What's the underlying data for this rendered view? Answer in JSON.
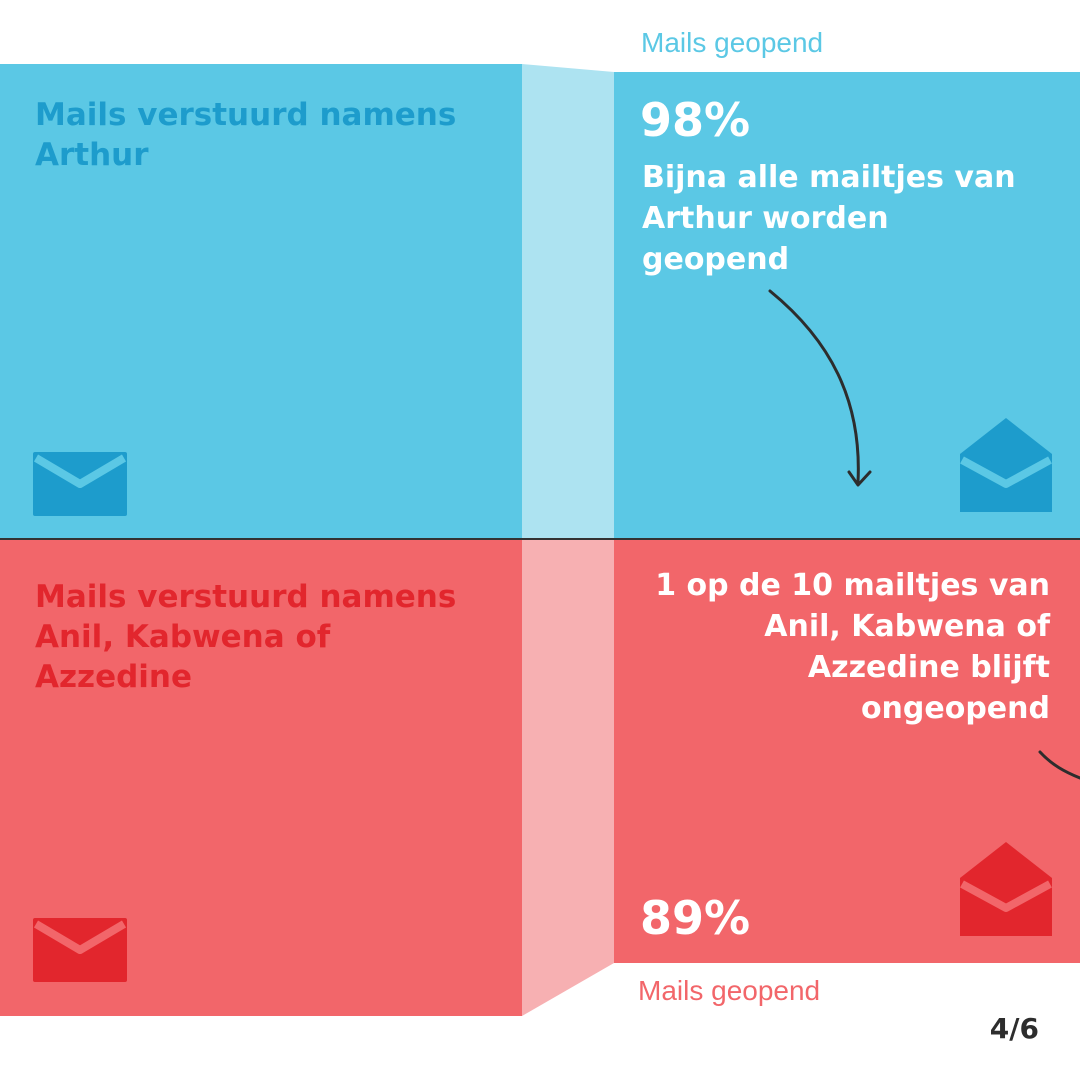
{
  "chart_data": {
    "type": "bar",
    "categories": [
      "Mails verstuurd namens Arthur",
      "Mails verstuurd namens Anil, Kabwena of Azzedine"
    ],
    "series": [
      {
        "name": "Mails geopend",
        "values": [
          98,
          89
        ]
      }
    ],
    "unit": "%",
    "ylim": [
      0,
      100
    ]
  },
  "blue": {
    "title": "Mails verstuurd namens Arthur",
    "percent": "98%",
    "note": "Bijna alle mailtjes van Arthur worden geopend",
    "label": "Mails geopend"
  },
  "red": {
    "title": "Mails verstuurd namens Anil, Kabwena of Azzedine",
    "percent": "89%",
    "note": "1 op de 10 mailtjes van Anil, Kabwena of Azzedine blijft ongeopend",
    "label": "Mails geopend"
  },
  "page": "4/6",
  "colors": {
    "blue": "#5bc8e5",
    "blue_light": "#ade3f1",
    "blue_dark": "#1d9ccc",
    "red": "#f2666a",
    "red_light": "#f7b0b2",
    "red_dark": "#e2262d"
  },
  "icons": {
    "blue_left": "closed-envelope-icon",
    "blue_right": "open-envelope-icon",
    "red_left": "closed-envelope-icon",
    "red_right": "open-envelope-icon"
  }
}
